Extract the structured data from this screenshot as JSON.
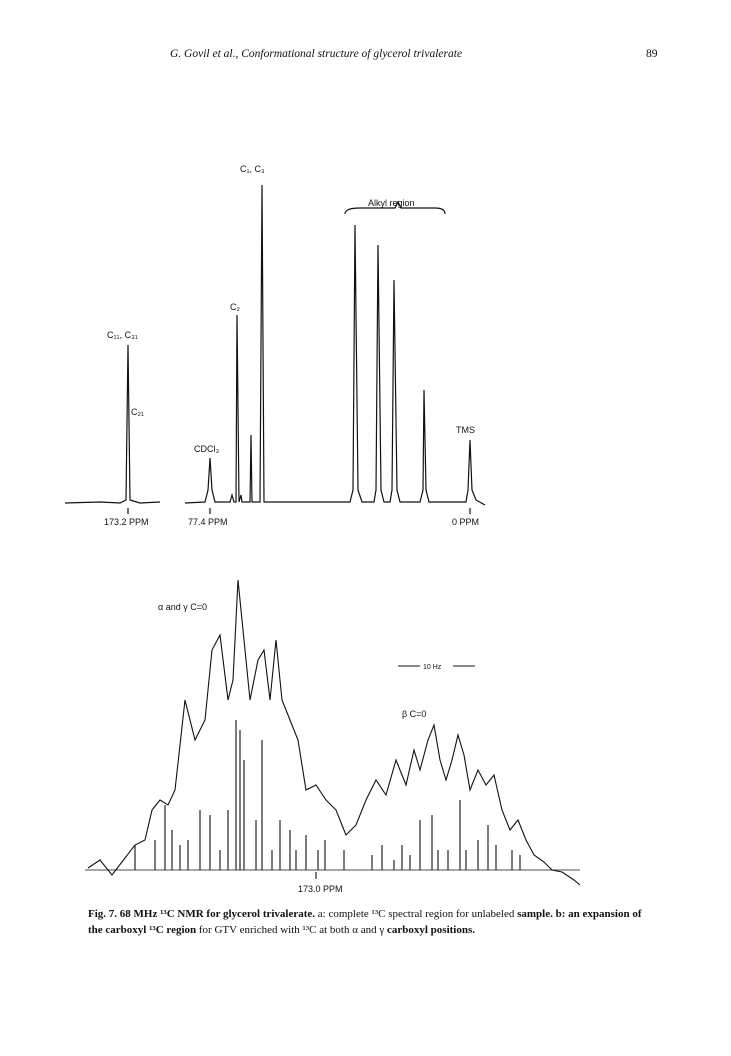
{
  "header": {
    "running_title": "G. Govil et al., Conformational structure of glycerol trivalerate",
    "page_number": "89"
  },
  "figure": {
    "panel_a": {
      "labels": {
        "c1_c3": "C₁, C₃",
        "alkyl_region": "Alkyl region",
        "c2": "C₂",
        "c11_c31": "C₁₁, C₃₁",
        "c21": "C₂₁",
        "cdcl3": "CDCl₃",
        "tms": "TMS"
      },
      "axis_labels": [
        "173.2 PPM",
        "77.4 PPM",
        "0 PPM"
      ]
    },
    "panel_b": {
      "labels": {
        "alpha_gamma": "α and γ C=0",
        "scale": "10 Hz",
        "beta": "β C=0"
      },
      "axis_label": "173.0 PPM"
    }
  },
  "caption": {
    "bold": "Fig. 7. 68 MHz ¹³C NMR for glycerol trivalerate.",
    "line1": "a: complete ¹³C spectral region for unlabeled",
    "bold2": "sample. b: an expansion of the carboxyl ¹³C region",
    "line2": "for GTV enriched with ¹³C at both α and γ",
    "bold3": "carboxyl positions."
  }
}
